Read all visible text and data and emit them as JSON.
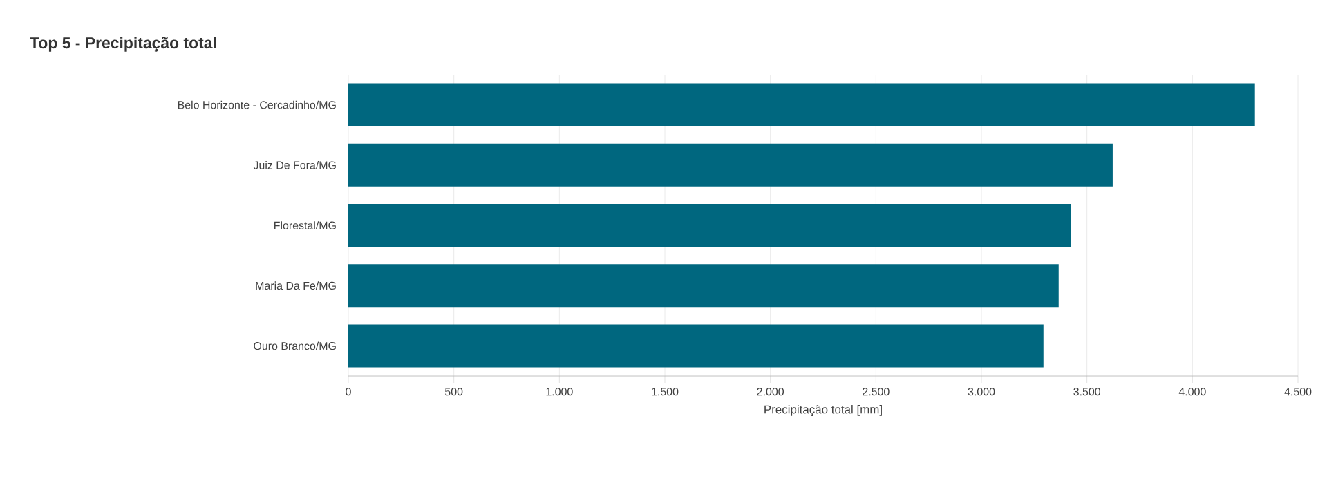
{
  "chart_data": {
    "type": "bar",
    "orientation": "horizontal",
    "title": "Top 5 - Precipitação total",
    "xlabel": "Precipitação total [mm]",
    "categories": [
      "Belo Horizonte - Cercadinho/MG",
      "Juiz De Fora/MG",
      "Florestal/MG",
      "Maria Da Fe/MG",
      "Ouro Branco/MG"
    ],
    "values": [
      4296,
      3622,
      3425,
      3366,
      3294
    ],
    "color": "#00677f",
    "xlim": [
      0,
      4500
    ],
    "xticks": [
      0,
      500,
      {
        "value": 1000,
        "label": "1.000"
      },
      {
        "value": 1500,
        "label": "1.500"
      },
      {
        "value": 2000,
        "label": "2.000"
      },
      {
        "value": 2500,
        "label": "2.500"
      },
      {
        "value": 3000,
        "label": "3.000"
      },
      {
        "value": 3500,
        "label": "3.500"
      },
      {
        "value": 4000,
        "label": "4.000"
      },
      {
        "value": 4500,
        "label": "4.500"
      }
    ],
    "grid": "x"
  }
}
